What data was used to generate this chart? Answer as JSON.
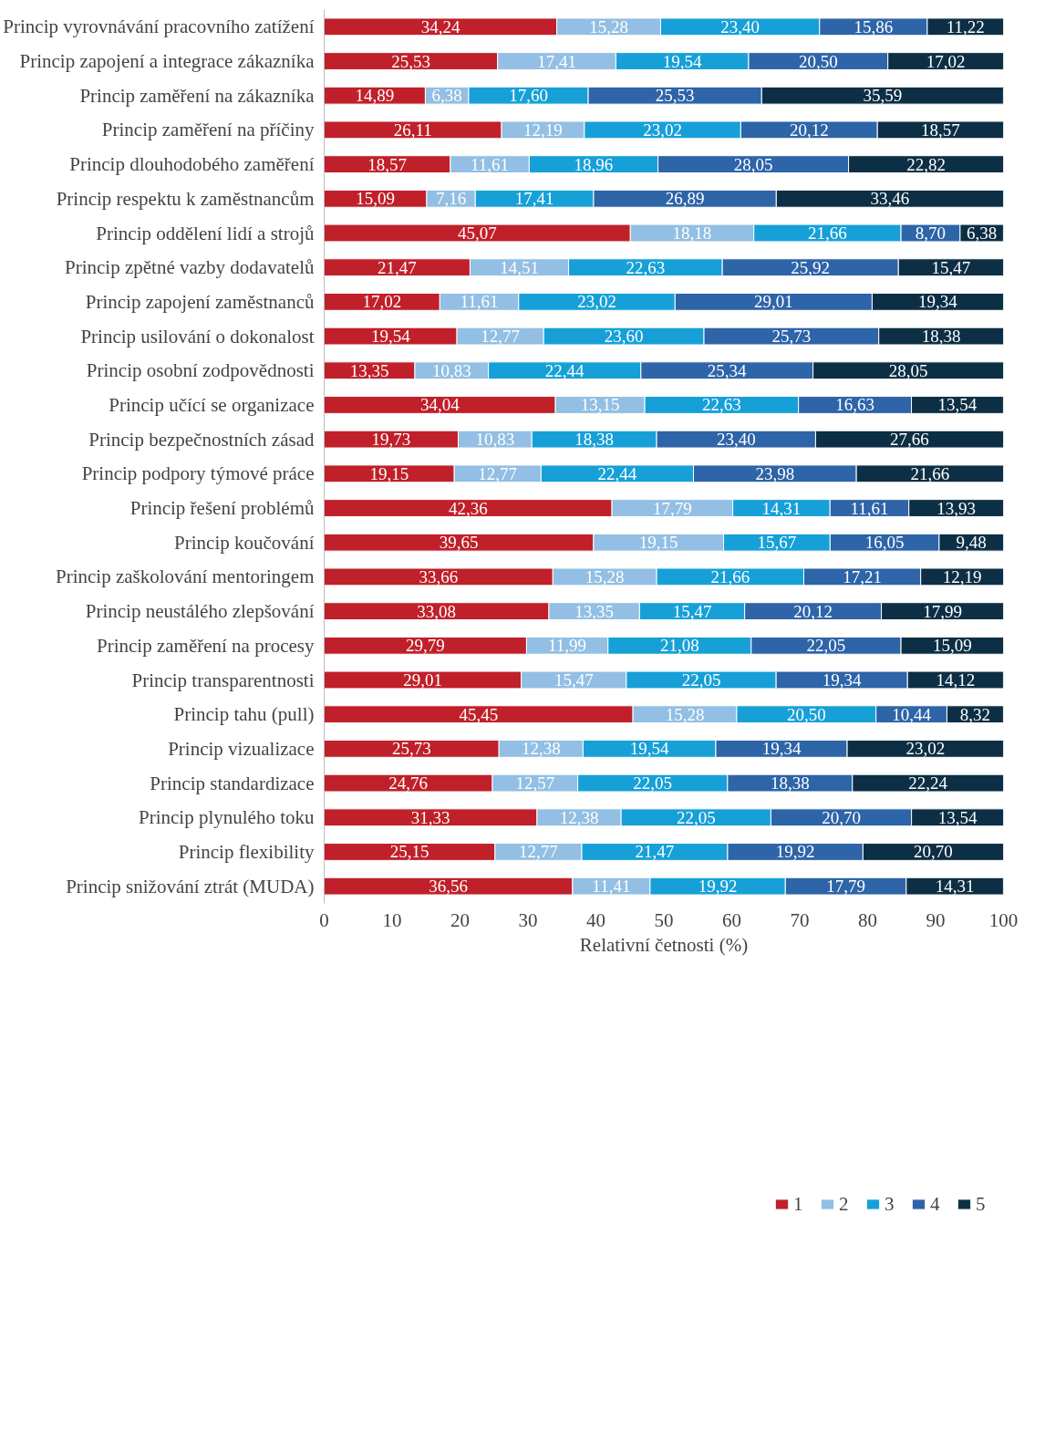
{
  "chart_data": {
    "type": "bar",
    "orientation": "horizontal",
    "stacked": true,
    "categories": [
      "Princip vyrovnávání pracovního zatížení",
      "Princip zapojení a integrace zákazníka",
      "Princip zaměření na zákazníka",
      "Princip zaměření na příčiny",
      "Princip dlouhodobého zaměření",
      "Princip respektu k zaměstnancům",
      "Princip oddělení lidí a strojů",
      "Princip zpětné vazby dodavatelů",
      "Princip zapojení zaměstnanců",
      "Princip usilování o dokonalost",
      "Princip osobní zodpovědnosti",
      "Princip učící se organizace",
      "Princip bezpečnostních zásad",
      "Princip podpory týmové práce",
      "Princip řešení problémů",
      "Princip koučování",
      "Princip zaškolování mentoringem",
      "Princip neustálého zlepšování",
      "Princip zaměření na procesy",
      "Princip transparentnosti",
      "Princip tahu (pull)",
      "Princip vizualizace",
      "Princip standardizace",
      "Princip plynulého toku",
      "Princip flexibility",
      "Princip snižování ztrát (MUDA)"
    ],
    "series": [
      {
        "name": "1",
        "color": "#c0202a",
        "values": [
          34.24,
          25.53,
          14.89,
          26.11,
          18.57,
          15.09,
          45.07,
          21.47,
          17.02,
          19.54,
          13.35,
          34.04,
          19.73,
          19.15,
          42.36,
          39.65,
          33.66,
          33.08,
          29.79,
          29.01,
          45.45,
          25.73,
          24.76,
          31.33,
          25.15,
          36.56
        ],
        "value_labels": [
          "34,24",
          "25,53",
          "14,89",
          "26,11",
          "18,57",
          "15,09",
          "45,07",
          "21,47",
          "17,02",
          "19,54",
          "13,35",
          "34,04",
          "19,73",
          "19,15",
          "42,36",
          "39,65",
          "33,66",
          "33,08",
          "29,79",
          "29,01",
          "45,45",
          "25,73",
          "24,76",
          "31,33",
          "25,15",
          "36,56"
        ]
      },
      {
        "name": "2",
        "color": "#92bfe3",
        "values": [
          15.28,
          17.41,
          6.38,
          12.19,
          11.61,
          7.16,
          18.18,
          14.51,
          11.61,
          12.77,
          10.83,
          13.15,
          10.83,
          12.77,
          17.79,
          19.15,
          15.28,
          13.35,
          11.99,
          15.47,
          15.28,
          12.38,
          12.57,
          12.38,
          12.77,
          11.41
        ],
        "value_labels": [
          "15,28",
          "17,41",
          "6,38",
          "12,19",
          "11,61",
          "7,16",
          "18,18",
          "14,51",
          "11,61",
          "12,77",
          "10,83",
          "13,15",
          "10,83",
          "12,77",
          "17,79",
          "19,15",
          "15,28",
          "13,35",
          "11,99",
          "15,47",
          "15,28",
          "12,38",
          "12,57",
          "12,38",
          "12,77",
          "11,41"
        ]
      },
      {
        "name": "3",
        "color": "#17a0d8",
        "values": [
          23.4,
          19.54,
          17.6,
          23.02,
          18.96,
          17.41,
          21.66,
          22.63,
          23.02,
          23.6,
          22.44,
          22.63,
          18.38,
          22.44,
          14.31,
          15.67,
          21.66,
          15.47,
          21.08,
          22.05,
          20.5,
          19.54,
          22.05,
          22.05,
          21.47,
          19.92
        ],
        "value_labels": [
          "23,40",
          "19,54",
          "17,60",
          "23,02",
          "18,96",
          "17,41",
          "21,66",
          "22,63",
          "23,02",
          "23,60",
          "22,44",
          "22,63",
          "18,38",
          "22,44",
          "14,31",
          "15,67",
          "21,66",
          "15,47",
          "21,08",
          "22,05",
          "20,50",
          "19,54",
          "22,05",
          "22,05",
          "21,47",
          "19,92"
        ]
      },
      {
        "name": "4",
        "color": "#2e64a8",
        "values": [
          15.86,
          20.5,
          25.53,
          20.12,
          28.05,
          26.89,
          8.7,
          25.92,
          29.01,
          25.73,
          25.34,
          16.63,
          23.4,
          23.98,
          11.61,
          16.05,
          17.21,
          20.12,
          22.05,
          19.34,
          10.44,
          19.34,
          18.38,
          20.7,
          19.92,
          17.79
        ],
        "value_labels": [
          "15,86",
          "20,50",
          "25,53",
          "20,12",
          "28,05",
          "26,89",
          "8,70",
          "25,92",
          "29,01",
          "25,73",
          "25,34",
          "16,63",
          "23,40",
          "23,98",
          "11,61",
          "16,05",
          "17,21",
          "20,12",
          "22,05",
          "19,34",
          "10,44",
          "19,34",
          "18,38",
          "20,70",
          "19,92",
          "17,79"
        ]
      },
      {
        "name": "5",
        "color": "#0d2f45",
        "values": [
          11.22,
          17.02,
          35.59,
          18.57,
          22.82,
          33.46,
          6.38,
          15.47,
          19.34,
          18.38,
          28.05,
          13.54,
          27.66,
          21.66,
          13.93,
          9.48,
          12.19,
          17.99,
          15.09,
          14.12,
          8.32,
          23.02,
          22.24,
          13.54,
          20.7,
          14.31
        ],
        "value_labels": [
          "11,22",
          "17,02",
          "35,59",
          "18,57",
          "22,82",
          "33,46",
          "6,38",
          "15,47",
          "19,34",
          "18,38",
          "28,05",
          "13,54",
          "27,66",
          "21,66",
          "13,93",
          "9,48",
          "12,19",
          "17,99",
          "15,09",
          "14,12",
          "8,32",
          "23,02",
          "22,24",
          "13,54",
          "20,70",
          "14,31"
        ]
      }
    ],
    "xlim": [
      0,
      100
    ],
    "xticks": [
      0,
      10,
      20,
      30,
      40,
      50,
      60,
      70,
      80,
      90,
      100
    ],
    "xlabel": "Relativní četnosti (%)",
    "legend": "bottom",
    "grid": false
  }
}
